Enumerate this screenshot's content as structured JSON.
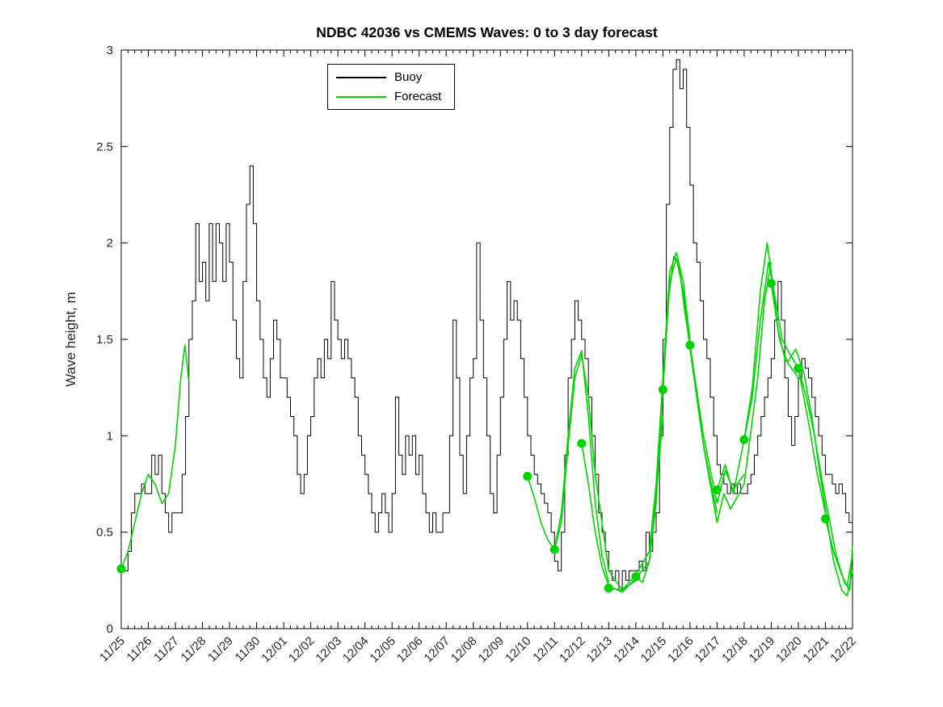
{
  "chart_data": {
    "type": "line",
    "title": "NDBC 42036 vs CMEMS Waves: 0 to 3 day forecast",
    "xlabel": "",
    "ylabel": "Wave height, m",
    "ylim": [
      0,
      3
    ],
    "xlim_days": [
      0,
      27
    ],
    "grid": false,
    "legend": {
      "position": "north",
      "entries": [
        "Buoy",
        "Forecast"
      ]
    },
    "colors": {
      "buoy": "#000000",
      "forecast": "#00d400",
      "marker": "#00d400",
      "axis_line": "#000000",
      "axis_text": "#262626"
    },
    "x_tick_labels": [
      "11/25",
      "11/26",
      "11/27",
      "11/28",
      "11/29",
      "11/30",
      "12/01",
      "12/02",
      "12/03",
      "12/04",
      "12/05",
      "12/06",
      "12/07",
      "12/08",
      "12/09",
      "12/10",
      "12/11",
      "12/12",
      "12/13",
      "12/14",
      "12/15",
      "12/16",
      "12/17",
      "12/18",
      "12/19",
      "12/20",
      "12/21",
      "12/22"
    ],
    "y_ticks": [
      0,
      0.5,
      1,
      1.5,
      2,
      2.5,
      3
    ],
    "y_tick_labels": [
      "0",
      "0.5",
      "1",
      "1.5",
      "2",
      "2.5",
      "3"
    ],
    "buoy": {
      "t_start_days": 0,
      "dt_days": 0.125,
      "values": [
        0.3,
        0.3,
        0.4,
        0.6,
        0.7,
        0.7,
        0.75,
        0.7,
        0.7,
        0.9,
        0.8,
        0.9,
        0.7,
        0.6,
        0.5,
        0.6,
        0.6,
        0.6,
        0.8,
        1.1,
        1.5,
        1.7,
        2.1,
        1.8,
        1.9,
        1.7,
        2.1,
        1.8,
        2.1,
        2.0,
        1.8,
        2.1,
        1.9,
        1.6,
        1.4,
        1.3,
        1.8,
        2.2,
        2.4,
        2.1,
        1.7,
        1.5,
        1.3,
        1.2,
        1.4,
        1.6,
        1.5,
        1.3,
        1.3,
        1.2,
        1.1,
        1.0,
        0.8,
        0.7,
        0.8,
        1.0,
        1.1,
        1.3,
        1.4,
        1.3,
        1.5,
        1.4,
        1.8,
        1.6,
        1.5,
        1.4,
        1.5,
        1.4,
        1.3,
        1.2,
        1.0,
        0.9,
        0.8,
        0.7,
        0.6,
        0.5,
        0.6,
        0.7,
        0.6,
        0.5,
        0.7,
        1.2,
        0.9,
        0.8,
        1.0,
        0.9,
        1.0,
        0.8,
        0.9,
        0.7,
        0.6,
        0.5,
        0.6,
        0.5,
        0.5,
        0.6,
        0.6,
        1.0,
        1.6,
        1.3,
        0.9,
        0.7,
        1.0,
        1.3,
        1.4,
        2.0,
        1.6,
        1.3,
        1.0,
        0.7,
        0.6,
        0.9,
        1.2,
        1.5,
        1.8,
        1.6,
        1.7,
        1.6,
        1.4,
        1.2,
        1.0,
        0.9,
        0.8,
        0.75,
        0.7,
        0.65,
        0.6,
        0.5,
        0.35,
        0.3,
        0.5,
        0.9,
        1.3,
        1.5,
        1.7,
        1.6,
        1.5,
        1.4,
        1.2,
        1.0,
        0.8,
        0.6,
        0.5,
        0.4,
        0.3,
        0.25,
        0.3,
        0.2,
        0.3,
        0.25,
        0.3,
        0.3,
        0.3,
        0.35,
        0.3,
        0.5,
        0.4,
        0.5,
        0.6,
        1.0,
        1.5,
        2.2,
        2.6,
        2.9,
        2.95,
        2.8,
        2.9,
        2.6,
        2.3,
        2.0,
        1.9,
        1.7,
        1.5,
        1.4,
        1.2,
        1.0,
        0.85,
        0.8,
        0.75,
        0.7,
        0.75,
        0.7,
        0.75,
        0.7,
        0.7,
        0.75,
        0.8,
        0.9,
        1.0,
        1.1,
        1.2,
        1.3,
        1.4,
        1.6,
        1.8,
        1.6,
        1.3,
        1.1,
        0.95,
        1.1,
        1.3,
        1.4,
        1.35,
        1.3,
        1.2,
        1.1,
        1.0,
        0.9,
        0.8,
        0.8,
        0.75,
        0.7,
        0.75,
        0.7,
        0.6,
        0.55,
        0.5
      ]
    },
    "forecast_segments": [
      {
        "x": [
          0,
          0.25,
          0.5,
          0.75,
          1.0,
          1.25,
          1.5,
          1.75,
          2.0,
          2.2,
          2.35,
          2.5
        ],
        "y": [
          0.31,
          0.4,
          0.55,
          0.7,
          0.8,
          0.75,
          0.65,
          0.7,
          0.95,
          1.3,
          1.47,
          1.28
        ]
      },
      {
        "x": [
          15,
          15.25,
          15.5,
          15.75,
          16,
          16.25,
          16.5,
          16.75,
          17,
          17.25,
          17.5,
          17.75,
          18
        ],
        "y": [
          0.79,
          0.68,
          0.55,
          0.46,
          0.41,
          0.6,
          1.0,
          1.35,
          1.44,
          1.1,
          0.65,
          0.38,
          0.24
        ]
      },
      {
        "x": [
          16,
          16.25,
          16.5,
          16.75,
          17,
          17.25,
          17.5,
          18,
          18.5,
          19
        ],
        "y": [
          0.41,
          0.55,
          0.95,
          1.3,
          1.42,
          1.2,
          0.8,
          0.3,
          0.2,
          0.25
        ]
      },
      {
        "x": [
          17,
          17.25,
          17.5,
          17.75,
          18,
          18.5,
          19,
          19.5,
          19.75,
          20
        ],
        "y": [
          0.96,
          0.75,
          0.5,
          0.32,
          0.22,
          0.19,
          0.26,
          0.35,
          0.7,
          1.1
        ]
      },
      {
        "x": [
          18,
          18.5,
          19,
          19.5,
          19.75,
          20,
          20.25,
          20.5,
          20.75,
          21
        ],
        "y": [
          0.21,
          0.2,
          0.28,
          0.4,
          0.75,
          1.3,
          1.85,
          1.95,
          1.8,
          1.5
        ]
      },
      {
        "x": [
          19,
          19.25,
          19.5,
          19.75,
          20,
          20.25,
          20.5,
          20.75,
          21,
          21.5,
          22
        ],
        "y": [
          0.27,
          0.24,
          0.35,
          0.65,
          1.24,
          1.8,
          1.92,
          1.75,
          1.45,
          0.95,
          0.6
        ]
      },
      {
        "x": [
          20,
          20.2,
          20.4,
          20.6,
          20.8,
          21,
          21.5,
          22,
          22.3,
          22.6,
          23
        ],
        "y": [
          1.24,
          1.7,
          1.93,
          1.88,
          1.65,
          1.47,
          1.0,
          0.65,
          0.82,
          0.72,
          0.8
        ]
      },
      {
        "x": [
          21,
          21.5,
          22,
          22.25,
          22.5,
          23,
          23.5,
          23.75,
          24
        ],
        "y": [
          1.47,
          0.95,
          0.55,
          0.7,
          0.62,
          0.75,
          1.3,
          1.7,
          1.9
        ]
      },
      {
        "x": [
          22,
          22.3,
          22.6,
          23,
          23.3,
          23.6,
          23.85,
          24,
          24.25,
          24.5,
          25
        ],
        "y": [
          0.72,
          0.85,
          0.7,
          0.98,
          1.25,
          1.75,
          2.0,
          1.85,
          1.55,
          1.4,
          1.3
        ]
      },
      {
        "x": [
          23,
          23.3,
          23.6,
          23.9,
          24.1,
          24.4,
          24.7,
          25,
          25.4,
          25.7,
          26
        ],
        "y": [
          0.98,
          1.2,
          1.6,
          1.9,
          1.75,
          1.5,
          1.42,
          1.35,
          1.05,
          0.8,
          0.6
        ]
      },
      {
        "x": [
          24,
          24.3,
          24.6,
          24.9,
          25.2,
          25.5,
          25.8,
          26,
          26.3,
          26.6,
          26.8,
          27
        ],
        "y": [
          1.79,
          1.5,
          1.38,
          1.45,
          1.33,
          1.1,
          0.8,
          0.62,
          0.35,
          0.2,
          0.17,
          0.3
        ]
      },
      {
        "x": [
          25,
          25.3,
          25.6,
          25.9,
          26.1,
          26.4,
          26.7,
          26.9,
          27
        ],
        "y": [
          1.35,
          1.2,
          1.0,
          0.75,
          0.6,
          0.38,
          0.24,
          0.2,
          0.43
        ]
      },
      {
        "x": [
          26,
          26.3,
          26.6,
          26.8,
          27
        ],
        "y": [
          0.57,
          0.4,
          0.28,
          0.22,
          0.38
        ]
      }
    ],
    "forecast_markers": {
      "x_days": [
        0,
        15,
        16,
        17,
        18,
        19,
        20,
        21,
        22,
        23,
        24,
        25,
        26
      ],
      "y": [
        0.31,
        0.79,
        0.41,
        0.96,
        0.21,
        0.27,
        1.24,
        1.47,
        0.72,
        0.98,
        1.79,
        1.35,
        0.57
      ]
    }
  }
}
